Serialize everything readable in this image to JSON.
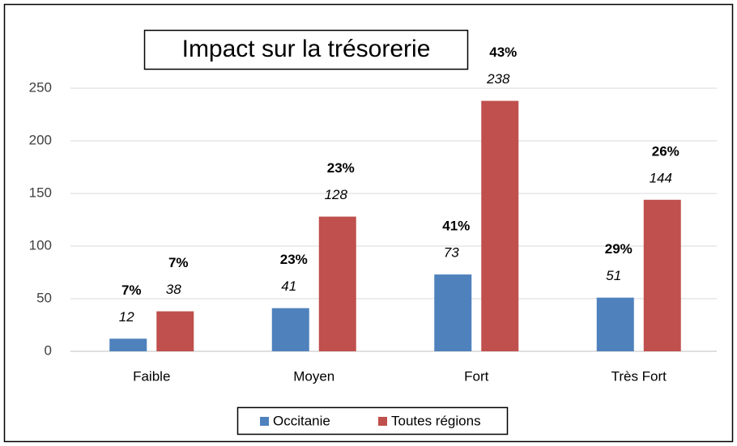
{
  "chart_data": {
    "type": "bar",
    "title": "Impact sur la trésorerie",
    "categories": [
      "Faible",
      "Moyen",
      "Fort",
      "Très Fort"
    ],
    "series": [
      {
        "name": "Occitanie",
        "color": "#4f81bd",
        "values": [
          12,
          41,
          73,
          51
        ],
        "percent_labels": [
          "7%",
          "23%",
          "41%",
          "29%"
        ]
      },
      {
        "name": "Toutes régions",
        "color": "#c0504d",
        "values": [
          38,
          128,
          238,
          144
        ],
        "percent_labels": [
          "7%",
          "23%",
          "43%",
          "26%"
        ]
      }
    ],
    "ylim": [
      0,
      250
    ],
    "yticks": [
      0,
      50,
      100,
      150,
      200,
      250
    ],
    "grid": true,
    "legend": "bottom"
  }
}
